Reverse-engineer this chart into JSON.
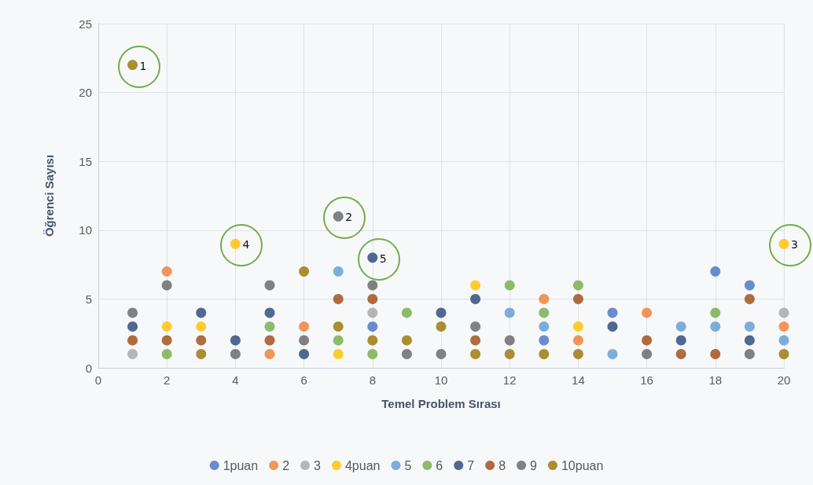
{
  "chart_data": {
    "type": "scatter",
    "xlabel": "Temel Problem Sırası",
    "ylabel": "Öğrenci Sayısı",
    "xlim": [
      0,
      20
    ],
    "xticks": [
      0,
      2,
      4,
      6,
      8,
      10,
      12,
      14,
      16,
      18,
      20
    ],
    "ylim": [
      0,
      25
    ],
    "yticks": [
      0,
      5,
      10,
      15,
      20,
      25
    ],
    "grid": true,
    "legend": "bottom",
    "marker": "circle",
    "series": [
      {
        "name": "1puan",
        "color": "#4472c4",
        "x": [
          8,
          13,
          15,
          18,
          19
        ],
        "values": [
          3,
          2,
          4,
          7,
          6
        ]
      },
      {
        "name": "2",
        "color": "#ed7d31",
        "x": [
          2,
          5,
          6,
          13,
          14,
          16,
          20
        ],
        "values": [
          7,
          1,
          3,
          5,
          2,
          4,
          3
        ]
      },
      {
        "name": "3",
        "color": "#a5a5a5",
        "x": [
          1,
          8,
          20
        ],
        "values": [
          1,
          4,
          4
        ]
      },
      {
        "name": "4puan",
        "color": "#ffc000",
        "x": [
          2,
          3,
          4,
          7,
          11,
          14,
          20
        ],
        "values": [
          3,
          3,
          9,
          1,
          6,
          3,
          9
        ]
      },
      {
        "name": "5",
        "color": "#5b9bd5",
        "x": [
          7,
          12,
          13,
          15,
          17,
          18,
          19,
          20
        ],
        "values": [
          7,
          4,
          3,
          1,
          3,
          3,
          3,
          2
        ]
      },
      {
        "name": "6",
        "color": "#70ad47",
        "x": [
          2,
          5,
          7,
          8,
          9,
          12,
          13,
          14,
          18
        ],
        "values": [
          1,
          3,
          2,
          1,
          4,
          6,
          4,
          6,
          4
        ]
      },
      {
        "name": "7",
        "color": "#264478",
        "x": [
          1,
          3,
          4,
          5,
          6,
          8,
          10,
          11,
          15,
          17,
          19
        ],
        "values": [
          3,
          4,
          2,
          4,
          1,
          8,
          4,
          5,
          3,
          2,
          2
        ]
      },
      {
        "name": "8",
        "color": "#9e480e",
        "x": [
          1,
          2,
          3,
          5,
          7,
          8,
          11,
          14,
          16,
          17,
          18,
          19
        ],
        "values": [
          2,
          2,
          2,
          2,
          5,
          5,
          2,
          5,
          2,
          1,
          1,
          5
        ]
      },
      {
        "name": "9",
        "color": "#636363",
        "x": [
          1,
          2,
          4,
          5,
          6,
          7,
          8,
          9,
          10,
          11,
          12,
          16,
          19
        ],
        "values": [
          4,
          6,
          1,
          6,
          2,
          11,
          6,
          1,
          1,
          3,
          2,
          1,
          1
        ]
      },
      {
        "name": "10puan",
        "color": "#997300",
        "x": [
          1,
          3,
          6,
          7,
          8,
          9,
          10,
          11,
          12,
          13,
          14,
          20
        ],
        "values": [
          22,
          1,
          7,
          3,
          2,
          2,
          3,
          1,
          1,
          1,
          1,
          1
        ]
      }
    ],
    "annotations": [
      {
        "text": "1",
        "x": 1,
        "y": 22
      },
      {
        "text": "2",
        "x": 7,
        "y": 11
      },
      {
        "text": "4",
        "x": 4,
        "y": 9
      },
      {
        "text": "5",
        "x": 8,
        "y": 8
      },
      {
        "text": "3",
        "x": 20,
        "y": 9
      }
    ]
  }
}
